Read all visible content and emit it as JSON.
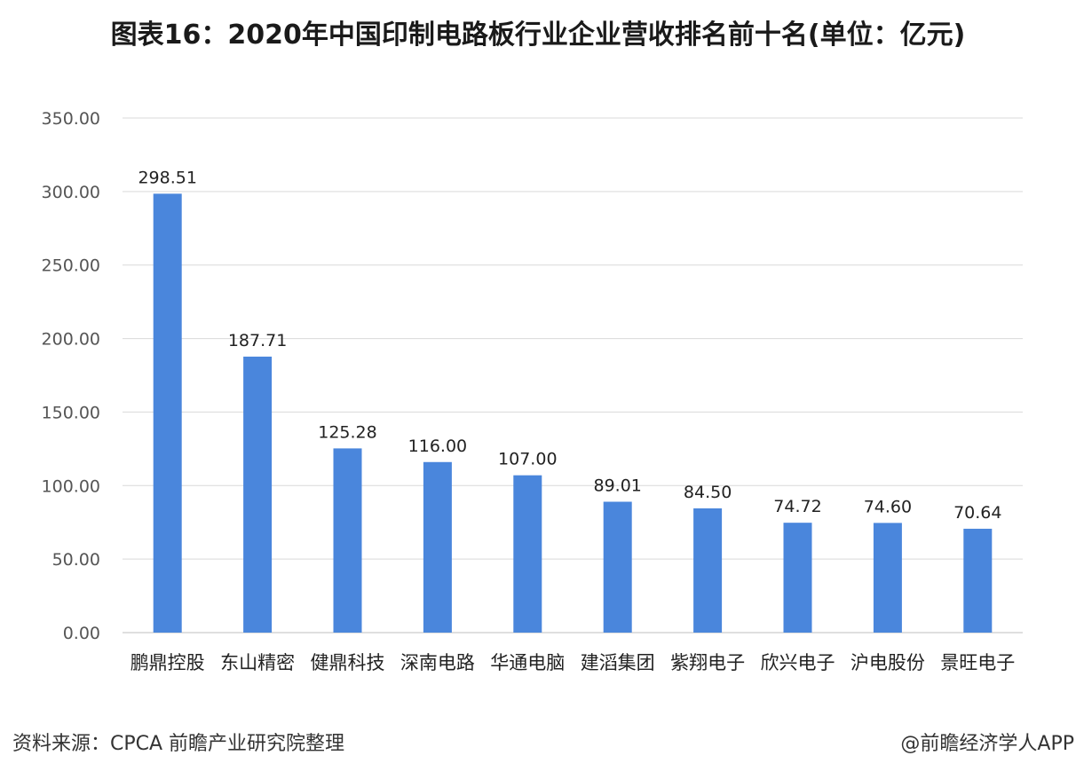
{
  "title": "图表16：2020年中国印制电路板行业企业营收排名前十名(单位：亿元)",
  "source": "资料来源：CPCA 前瞻产业研究院整理",
  "brand": "@前瞻经济学人APP",
  "chart_data": {
    "type": "bar",
    "categories": [
      "鹏鼎控股",
      "东山精密",
      "健鼎科技",
      "深南电路",
      "华通电脑",
      "建滔集团",
      "紫翔电子",
      "欣兴电子",
      "沪电股份",
      "景旺电子"
    ],
    "values": [
      298.51,
      187.71,
      125.28,
      116.0,
      107.0,
      89.01,
      84.5,
      74.72,
      74.6,
      70.64
    ],
    "value_labels": [
      "298.51",
      "187.71",
      "125.28",
      "116.00",
      "107.00",
      "89.01",
      "84.50",
      "74.72",
      "74.60",
      "70.64"
    ],
    "ylim": [
      0,
      350
    ],
    "yticks": [
      "0.00",
      "50.00",
      "100.00",
      "150.00",
      "200.00",
      "250.00",
      "300.00",
      "350.00"
    ],
    "grid": true,
    "bar_color": "#4a86dc"
  }
}
